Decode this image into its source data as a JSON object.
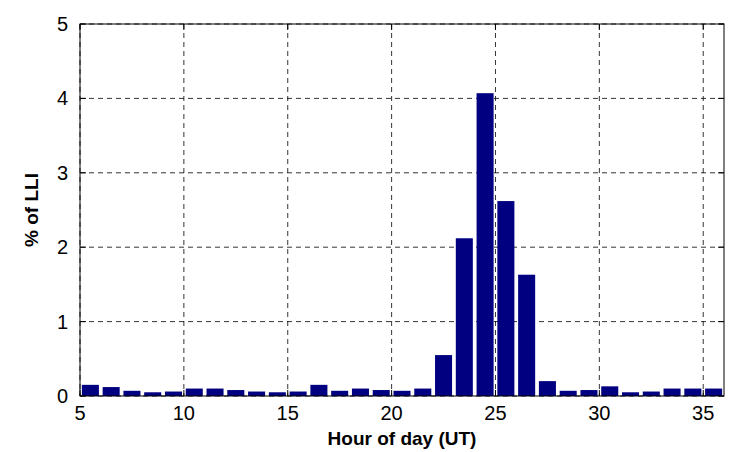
{
  "chart_data": {
    "type": "bar",
    "x_label": "Hour of day (UT)",
    "y_label": "% of LLI",
    "x": [
      5.5,
      6.5,
      7.5,
      8.5,
      9.5,
      10.5,
      11.5,
      12.5,
      13.5,
      14.5,
      15.5,
      16.5,
      17.5,
      18.5,
      19.5,
      20.5,
      21.5,
      22.5,
      23.5,
      24.5,
      25.5,
      26.5,
      27.5,
      28.5,
      29.5,
      30.5,
      31.5,
      32.5,
      33.5,
      34.5,
      35.5
    ],
    "values": [
      0.15,
      0.12,
      0.07,
      0.05,
      0.06,
      0.1,
      0.1,
      0.08,
      0.06,
      0.05,
      0.06,
      0.15,
      0.07,
      0.1,
      0.08,
      0.07,
      0.1,
      0.55,
      2.12,
      4.07,
      2.62,
      1.63,
      0.2,
      0.07,
      0.08,
      0.13,
      0.05,
      0.06,
      0.1,
      0.1,
      0.1
    ],
    "color": "#000080",
    "xlim": [
      5,
      36
    ],
    "xticks": [
      5,
      10,
      15,
      20,
      25,
      30,
      35
    ],
    "ylim": [
      0,
      5
    ],
    "yticks": [
      0,
      1,
      2,
      3,
      4,
      5
    ],
    "grid": true
  }
}
